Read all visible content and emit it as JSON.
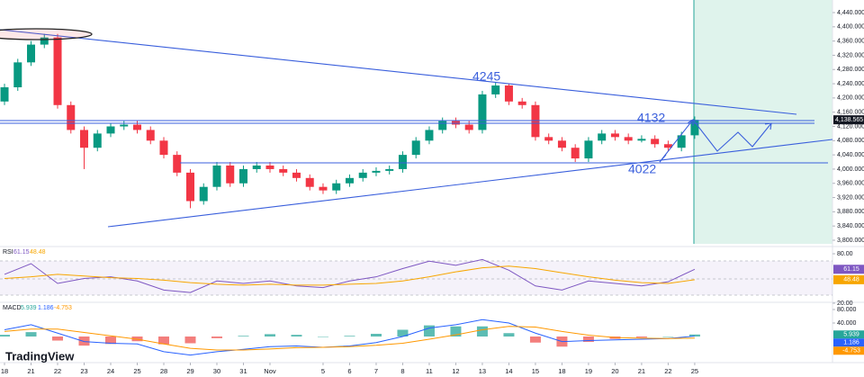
{
  "chart_data": [
    {
      "type": "candlestick",
      "x": [
        0,
        0.5,
        1,
        1.5,
        2,
        2.5,
        3,
        3.5,
        4,
        4.5,
        5,
        5.5,
        6,
        6.5,
        7,
        7.5,
        8,
        8.5,
        9,
        9.5,
        10,
        10.5,
        11,
        11.5,
        12,
        12.5,
        13,
        13.5,
        14,
        14.5,
        15,
        15.5,
        16,
        16.5,
        17,
        17.5,
        18,
        18.5,
        19,
        19.5,
        20,
        20.5,
        21,
        21.5,
        22,
        22.5,
        23,
        23.5,
        24,
        24.5,
        25,
        25.5,
        26
      ],
      "open": [
        4190,
        4230,
        4300,
        4350,
        4370,
        4180,
        4110,
        4060,
        4100,
        4120,
        4125,
        4110,
        4080,
        4040,
        3990,
        3910,
        3950,
        4010,
        3960,
        4000,
        4010,
        4000,
        3990,
        3975,
        3950,
        3940,
        3960,
        3975,
        3990,
        3995,
        4000,
        4040,
        4080,
        4110,
        4135,
        4125,
        4110,
        4210,
        4235,
        4190,
        4180,
        4090,
        4080,
        4060,
        4030,
        4080,
        4100,
        4090,
        4080,
        4085,
        4070,
        4060,
        4095
      ],
      "high": [
        4240,
        4310,
        4360,
        4380,
        4380,
        4190,
        4120,
        4110,
        4130,
        4135,
        4135,
        4120,
        4090,
        4050,
        4000,
        3960,
        4020,
        4020,
        4010,
        4020,
        4020,
        4010,
        4000,
        3985,
        3960,
        3970,
        3985,
        4000,
        4005,
        4010,
        4050,
        4090,
        4120,
        4145,
        4145,
        4135,
        4220,
        4245,
        4240,
        4200,
        4190,
        4100,
        4090,
        4070,
        4090,
        4110,
        4110,
        4100,
        4095,
        4095,
        4080,
        4105,
        4148
      ],
      "low": [
        4180,
        4220,
        4290,
        4340,
        4170,
        4100,
        4000,
        4050,
        4090,
        4110,
        4100,
        4070,
        4030,
        3980,
        3890,
        3900,
        3940,
        3950,
        3950,
        3990,
        3990,
        3980,
        3965,
        3940,
        3930,
        3930,
        3950,
        3965,
        3980,
        3985,
        3990,
        4030,
        4070,
        4100,
        4115,
        4100,
        4100,
        4200,
        4180,
        4170,
        4080,
        4070,
        4050,
        4020,
        4020,
        4070,
        4080,
        4070,
        4075,
        4060,
        4050,
        4050,
        4085
      ],
      "close": [
        4230,
        4300,
        4350,
        4370,
        4180,
        4110,
        4060,
        4100,
        4120,
        4125,
        4110,
        4080,
        4040,
        3990,
        3910,
        3950,
        4010,
        3960,
        4000,
        4010,
        4000,
        3990,
        3975,
        3950,
        3940,
        3960,
        3975,
        3990,
        3995,
        4000,
        4040,
        4080,
        4110,
        4135,
        4125,
        4110,
        4210,
        4235,
        4190,
        4180,
        4090,
        4080,
        4060,
        4030,
        4080,
        4100,
        4090,
        4080,
        4085,
        4070,
        4060,
        4095,
        4138.565
      ],
      "up_color": "#089981",
      "down_color": "#f23645",
      "xlim": [
        -0.17,
        31.19
      ],
      "ylim": [
        3792.4,
        4475.4
      ],
      "xticks": [
        {
          "value": 0,
          "label": "18"
        },
        {
          "value": 1,
          "label": "21"
        },
        {
          "value": 2,
          "label": "22"
        },
        {
          "value": 3,
          "label": "23"
        },
        {
          "value": 4,
          "label": "24"
        },
        {
          "value": 5,
          "label": "25"
        },
        {
          "value": 6,
          "label": "28"
        },
        {
          "value": 7,
          "label": "29"
        },
        {
          "value": 8,
          "label": "30"
        },
        {
          "value": 9,
          "label": "31"
        },
        {
          "value": 10,
          "label": "Nov"
        },
        {
          "value": 12,
          "label": "5"
        },
        {
          "value": 13,
          "label": "6"
        },
        {
          "value": 14,
          "label": "7"
        },
        {
          "value": 15,
          "label": "8"
        },
        {
          "value": 16,
          "label": "11"
        },
        {
          "value": 17,
          "label": "12"
        },
        {
          "value": 18,
          "label": "13"
        },
        {
          "value": 19,
          "label": "14"
        },
        {
          "value": 20,
          "label": "15"
        },
        {
          "value": 21,
          "label": "18"
        },
        {
          "value": 22,
          "label": "19"
        },
        {
          "value": 23,
          "label": "20"
        },
        {
          "value": 24,
          "label": "21"
        },
        {
          "value": 25,
          "label": "22"
        },
        {
          "value": 26,
          "label": "25"
        }
      ],
      "yticks": [
        {
          "value": 3800,
          "label": "3,800.000"
        },
        {
          "value": 3840,
          "label": "3,840.000"
        },
        {
          "value": 3880,
          "label": "3,880.000"
        },
        {
          "value": 3920,
          "label": "3,920.000"
        },
        {
          "value": 3960,
          "label": "3,960.000"
        },
        {
          "value": 4000,
          "label": "4,000.000"
        },
        {
          "value": 4040,
          "label": "4,040.000"
        },
        {
          "value": 4080,
          "label": "4,080.000"
        },
        {
          "value": 4120,
          "label": "4,120.000"
        },
        {
          "value": 4160,
          "label": "4,160.000"
        },
        {
          "value": 4200,
          "label": "4,200.000"
        },
        {
          "value": 4240,
          "label": "4,240.000"
        },
        {
          "value": 4280,
          "label": "4,280.000"
        },
        {
          "value": 4320,
          "label": "4,320.000"
        },
        {
          "value": 4360,
          "label": "4,360.000"
        },
        {
          "value": 4400,
          "label": "4,400.000"
        },
        {
          "value": 4440,
          "label": "4,440.000"
        }
      ],
      "last_price": {
        "value": 4138.565,
        "label": "4,138.565"
      },
      "annotations": [
        "4245",
        "4132",
        "4022"
      ],
      "branding": "TradingView"
    },
    {
      "type": "line",
      "title": "RSI",
      "x": [
        0,
        1,
        2,
        3,
        4,
        5,
        6,
        7,
        8,
        9,
        10,
        11,
        12,
        13,
        14,
        15,
        16,
        17,
        18,
        19,
        20,
        21,
        22,
        23,
        24,
        25,
        26
      ],
      "series": [
        {
          "color": "#7e57c2",
          "values": [
            55,
            68,
            44,
            50,
            52,
            47,
            36,
            33,
            47,
            44,
            47,
            41,
            39,
            47,
            52,
            62,
            71,
            66,
            73,
            60,
            41,
            36,
            47,
            44,
            41,
            46,
            61.15
          ]
        },
        {
          "color": "#f7a600",
          "values": [
            50,
            52,
            55,
            53,
            51,
            50,
            48,
            45,
            43,
            42,
            43,
            42,
            42,
            43,
            44,
            47,
            52,
            58,
            63,
            65,
            62,
            57,
            52,
            48,
            45,
            44,
            48.48
          ]
        }
      ],
      "ylim": [
        16.7,
        84.4
      ],
      "yticks": [
        {
          "value": 80,
          "label": "80.00"
        },
        {
          "value": 20,
          "label": "20.00"
        }
      ]
    },
    {
      "type": "macd",
      "title": "MACD",
      "x": [
        0,
        1,
        2,
        3,
        4,
        5,
        6,
        7,
        8,
        9,
        10,
        11,
        12,
        13,
        14,
        15,
        16,
        17,
        18,
        19,
        20,
        21,
        22,
        23,
        24,
        25,
        26
      ],
      "series": [
        {
          "kind": "bar",
          "color": "#26a69a",
          "negative_color": "#ef5350",
          "values": [
            5,
            13,
            -12,
            -27,
            -22,
            -14,
            -23,
            -20,
            -5,
            2,
            7,
            5,
            0,
            2,
            8,
            20,
            33,
            30,
            30,
            10,
            -18,
            -30,
            -16,
            -7,
            -3,
            0,
            5.939
          ]
        },
        {
          "kind": "line",
          "color": "#2962ff",
          "values": [
            20,
            35,
            10,
            -15,
            -20,
            -22,
            -45,
            -55,
            -45,
            -38,
            -30,
            -28,
            -32,
            -28,
            -18,
            0,
            25,
            35,
            50,
            40,
            10,
            -15,
            -12,
            -10,
            -8,
            -6,
            1.186
          ]
        },
        {
          "kind": "line",
          "color": "#ff9800",
          "values": [
            15,
            22,
            22,
            12,
            2,
            -8,
            -22,
            -35,
            -40,
            -40,
            -37,
            -33,
            -32,
            -30,
            -26,
            -20,
            -8,
            5,
            20,
            30,
            28,
            15,
            4,
            -3,
            -5,
            -6,
            -4.753
          ]
        }
      ],
      "ylim": [
        -69.3,
        96
      ],
      "yticks": [
        {
          "value": 80,
          "label": "80.000"
        },
        {
          "value": 40,
          "label": "40.000"
        }
      ]
    }
  ]
}
